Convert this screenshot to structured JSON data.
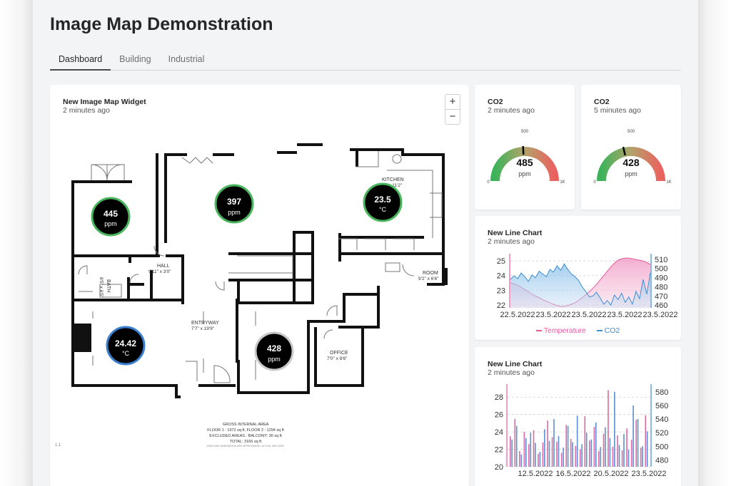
{
  "page": {
    "title": "Image Map Demonstration"
  },
  "tabs": [
    {
      "label": "Dashboard",
      "active": true
    },
    {
      "label": "Building",
      "active": false
    },
    {
      "label": "Industrial",
      "active": false
    }
  ],
  "map_widget": {
    "title": "New Image Map Widget",
    "subtitle": "2 minutes ago",
    "zoom_in": "+",
    "zoom_out": "−",
    "footer": "1.1",
    "sensors": [
      {
        "value": "445",
        "unit": "ppm",
        "ring": "#49b55c"
      },
      {
        "value": "397",
        "unit": "ppm",
        "ring": "#49b55c"
      },
      {
        "value": "23.5",
        "unit": "°C",
        "ring": "#49b55c"
      },
      {
        "value": "24.42",
        "unit": "°C",
        "ring": "#3a7fd0"
      },
      {
        "value": "428",
        "unit": "ppm",
        "ring": "#c9c9c9"
      }
    ],
    "rooms": {
      "kitchen": "KITCHEN",
      "kitchen_dim": "21'6\" x 11'2\"",
      "hall": "HALL",
      "hall_dim": "9'11\" x 3'0\"",
      "bath": "BATH",
      "bath_dim": "8'5\" x 6'5\"",
      "room": "ROOM",
      "room_dim": "9'2\" x 6'6\"",
      "entryway": "ENTRYWAY",
      "entryway_dim": "7'7\" x 19'9\"",
      "office": "OFFICE",
      "office_dim": "7'0\" x 8'6\""
    },
    "area_notes": {
      "title": "GROSS INTERNAL AREA",
      "floors": "FLOOR 1 : 1972 sq ft, FLOOR 2 : 1294 sq ft",
      "excluded": "EXCLUDED AREAS : BALCONY: 30 sq ft",
      "total": "TOTAL: 3166 sq ft",
      "disclaimer": "SIZES AND DIMENSIONS ARE APPROXIMATE, ACTUAL MAY VARY"
    }
  },
  "gauges": [
    {
      "title": "CO2",
      "subtitle": "2 minutes ago",
      "value": 485,
      "value_text": "485",
      "unit": "ppm",
      "min_label": "0",
      "mid_label": "500",
      "max_label": "1K",
      "max": 1000
    },
    {
      "title": "CO2",
      "subtitle": "5 minutes ago",
      "value": 428,
      "value_text": "428",
      "unit": "ppm",
      "min_label": "0",
      "mid_label": "500",
      "max_label": "1K",
      "max": 1000
    }
  ],
  "line_chart": {
    "title": "New Line Chart",
    "subtitle": "2 minutes ago",
    "legend_temp": "Temperature",
    "legend_co2": "CO2",
    "chart_data": {
      "type": "area",
      "x_tick_labels": [
        "22.5.2022",
        "23.5.2022",
        "23.5.2022",
        "23.5.2022",
        "23.5.2022"
      ],
      "y_left_ticks": [
        "25",
        "24",
        "23",
        "22"
      ],
      "y_right_ticks": [
        "510",
        "500",
        "490",
        "480",
        "470",
        "460"
      ],
      "ylim_left": [
        21.8,
        25.3
      ],
      "ylim_right": [
        457,
        513
      ],
      "series": [
        {
          "name": "Temperature",
          "axis": "left",
          "color": "#e85aa0",
          "values": [
            23.5,
            23.45,
            23.35,
            23.2,
            23.05,
            22.9,
            22.75,
            22.6,
            22.5,
            22.35,
            22.25,
            22.15,
            22.05,
            21.95,
            21.9,
            21.9,
            21.95,
            22.05,
            22.15,
            22.3,
            22.5,
            22.7,
            22.9,
            23.15,
            23.4,
            23.7,
            24.0,
            24.3,
            24.6,
            24.85,
            25.05,
            25.15,
            25.2,
            25.2,
            25.15,
            25.1,
            25.05,
            25.0,
            24.9,
            24.75
          ]
        },
        {
          "name": "CO2",
          "axis": "right",
          "color": "#3d8fd0",
          "values": [
            488,
            492,
            489,
            495,
            491,
            486,
            493,
            490,
            497,
            494,
            491,
            499,
            496,
            503,
            498,
            505,
            499,
            494,
            491,
            487,
            480,
            475,
            469,
            470,
            474,
            468,
            461,
            465,
            460,
            471,
            466,
            473,
            463,
            469,
            461,
            475,
            467,
            488,
            472,
            495
          ]
        }
      ]
    }
  },
  "bar_chart": {
    "title": "New Line Chart",
    "subtitle": "2 minutes ago",
    "chart_data": {
      "type": "bar",
      "x_tick_labels": [
        "12.5.2022",
        "16.5.2022",
        "20.5.2022",
        "23.5.2022"
      ],
      "y_left_ticks": [
        "28",
        "26",
        "24",
        "22",
        "20"
      ],
      "y_right_ticks": [
        "580",
        "560",
        "540",
        "520",
        "500",
        "480"
      ],
      "ylim_left": [
        20,
        29
      ],
      "ylim_right": [
        470,
        585
      ],
      "series": [
        {
          "name": "Temperature",
          "axis": "left",
          "color": "#e85aa0",
          "values": [
            23.5,
            25.5,
            21.8,
            24.0,
            22.6,
            24.2,
            21.5,
            22.8,
            25.3,
            23.4,
            22.9,
            21.6,
            24.8,
            23.2,
            22.4,
            22.0,
            25.8,
            23.0,
            24.6,
            21.8,
            23.8,
            28.8,
            22.3,
            23.6,
            21.9,
            24.4,
            23.1,
            25.4,
            22.2,
            25.9
          ]
        },
        {
          "name": "CO2",
          "axis": "right",
          "color": "#3d8fd0",
          "values": [
            510,
            530,
            488,
            512,
            520,
            505,
            492,
            525,
            508,
            540,
            515,
            498,
            530,
            506,
            545,
            503,
            520,
            510,
            535,
            499,
            528,
            512,
            580,
            502,
            518,
            495,
            560,
            540,
            500,
            522
          ]
        }
      ]
    }
  }
}
